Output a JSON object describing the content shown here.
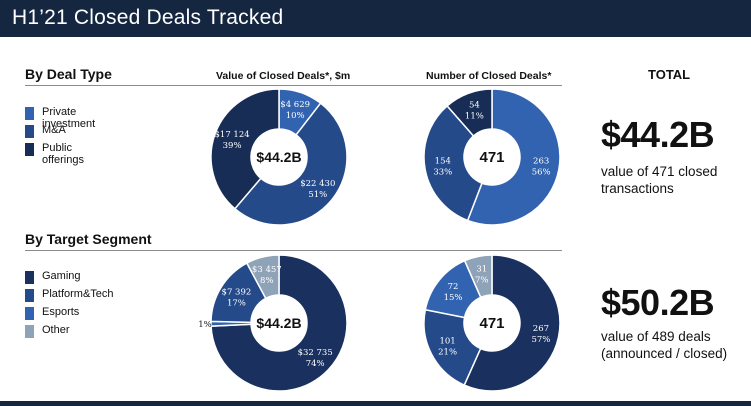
{
  "header": {
    "title": "H1’21 Closed Deals Tracked"
  },
  "sections": {
    "deal_type": "By Deal Type",
    "target_segment": "By Target Segment"
  },
  "columns": {
    "value": "Value of Closed Deals*, $m",
    "count": "Number of Closed Deals*",
    "total": "TOTAL"
  },
  "legend_deal_type": [
    {
      "label": "Private investment",
      "color": "#3163b0"
    },
    {
      "label": "M&A",
      "color": "#254a8a"
    },
    {
      "label": "Public offerings",
      "color": "#182d56"
    }
  ],
  "legend_segment": [
    {
      "label": "Gaming",
      "color": "#1a3160"
    },
    {
      "label": "Platform&Tech",
      "color": "#254a8a"
    },
    {
      "label": "Esports",
      "color": "#3163b0"
    },
    {
      "label": "Other",
      "color": "#8ea3b8"
    }
  ],
  "totals": {
    "deal_type_amount": "$44.2B",
    "deal_type_desc_1": "value of 471 closed",
    "deal_type_desc_2": "transactions",
    "segment_amount": "$50.2B",
    "segment_desc_1": "value of 489 deals",
    "segment_desc_2": "(announced / closed)"
  },
  "chart_data": [
    {
      "type": "pie",
      "title": "Value of Closed Deals*, $m",
      "center_label": "$44.2B",
      "slices": [
        {
          "name": "Private investment",
          "value": 4629,
          "line1": "$4 629",
          "line2": "10%",
          "color": "#3163b0"
        },
        {
          "name": "M&A",
          "value": 22430,
          "line1": "$22 430",
          "line2": "51%",
          "color": "#254a8a"
        },
        {
          "name": "Public offerings",
          "value": 17124,
          "line1": "$17 124",
          "line2": "39%",
          "color": "#182d56"
        }
      ]
    },
    {
      "type": "pie",
      "title": "Number of Closed Deals*",
      "center_label": "471",
      "slices": [
        {
          "name": "Private investment",
          "value": 263,
          "line1": "263",
          "line2": "56%",
          "color": "#3163b0"
        },
        {
          "name": "M&A",
          "value": 154,
          "line1": "154",
          "line2": "33%",
          "color": "#254a8a"
        },
        {
          "name": "Public offerings",
          "value": 54,
          "line1": "54",
          "line2": "11%",
          "color": "#182d56"
        }
      ]
    },
    {
      "type": "pie",
      "title": "Value of Closed Deals*, $m",
      "center_label": "$44.2B",
      "slices": [
        {
          "name": "Gaming",
          "value": 32735,
          "line1": "$32 735",
          "line2": "74%",
          "color": "#1a3160"
        },
        {
          "name": "Esports",
          "value": 500,
          "line1": "",
          "line2": "1%",
          "color": "#3163b0"
        },
        {
          "name": "Platform&Tech",
          "value": 7392,
          "line1": "$7 392",
          "line2": "17%",
          "color": "#254a8a"
        },
        {
          "name": "Other",
          "value": 3457,
          "line1": "$3 457",
          "line2": "8%",
          "color": "#8ea3b8"
        }
      ]
    },
    {
      "type": "pie",
      "title": "Number of Closed Deals*",
      "center_label": "471",
      "slices": [
        {
          "name": "Gaming",
          "value": 267,
          "line1": "267",
          "line2": "57%",
          "color": "#1a3160"
        },
        {
          "name": "Platform&Tech",
          "value": 101,
          "line1": "101",
          "line2": "21%",
          "color": "#254a8a"
        },
        {
          "name": "Esports",
          "value": 72,
          "line1": "72",
          "line2": "15%",
          "color": "#3163b0"
        },
        {
          "name": "Other",
          "value": 31,
          "line1": "31",
          "line2": "7%",
          "color": "#8ea3b8"
        }
      ]
    }
  ]
}
